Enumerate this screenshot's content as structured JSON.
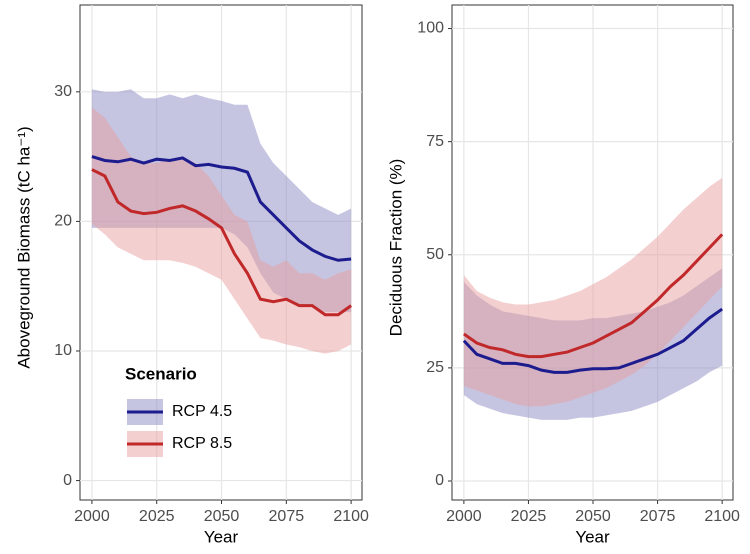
{
  "chart_data": [
    {
      "type": "line",
      "y_label": "Aboveground Biomass (tC ha⁻¹)",
      "x_label": "Year",
      "xlim": [
        1995.4,
        2104.2
      ],
      "xticks": [
        2000,
        2025,
        2050,
        2075,
        2100
      ],
      "ylim": [
        -1.5,
        36.7
      ],
      "yticks": [
        0,
        10,
        20,
        30
      ],
      "grid": true,
      "legend": {
        "title": "Scenario",
        "position": "bottom-left"
      },
      "x": [
        2000,
        2005,
        2010,
        2015,
        2020,
        2025,
        2030,
        2035,
        2040,
        2045,
        2050,
        2055,
        2060,
        2065,
        2070,
        2075,
        2080,
        2085,
        2090,
        2095,
        2100
      ],
      "series": [
        {
          "name": "RCP 4.5",
          "color": "#1c1c8e",
          "band_color": "#8c8cc6",
          "values": [
            25,
            24.7,
            24.6,
            24.8,
            24.5,
            24.8,
            24.7,
            24.9,
            24.3,
            24.4,
            24.2,
            24.1,
            23.8,
            21.5,
            20.5,
            19.5,
            18.5,
            17.8,
            17.3,
            17,
            17.1
          ],
          "lower": [
            19.5,
            19.5,
            19.5,
            19.5,
            19.5,
            19.5,
            19.5,
            19.5,
            19.5,
            19.5,
            19.5,
            19,
            18,
            16,
            14.5,
            14,
            13.5,
            13.5,
            13,
            13,
            13
          ],
          "upper": [
            30.2,
            30,
            30,
            30.2,
            29.5,
            29.5,
            29.8,
            29.5,
            29.8,
            29.5,
            29.3,
            29,
            29,
            26,
            24.5,
            23.5,
            22.5,
            21.5,
            21,
            20.5,
            21
          ]
        },
        {
          "name": "RCP 8.5",
          "color": "#c0282a",
          "band_color": "#e8a0a0",
          "values": [
            24,
            23.5,
            21.5,
            20.8,
            20.6,
            20.7,
            21,
            21.2,
            20.8,
            20.2,
            19.5,
            17.5,
            16,
            14,
            13.8,
            14,
            13.5,
            13.5,
            12.8,
            12.8,
            13.5
          ],
          "lower": [
            19.8,
            19,
            18,
            17.5,
            17,
            17,
            17,
            16.8,
            16.5,
            16,
            15.5,
            14,
            12.5,
            11,
            10.8,
            10.5,
            10.3,
            10,
            9.8,
            10,
            10.5
          ],
          "upper": [
            28.8,
            28,
            26.5,
            25,
            24.5,
            24.5,
            24.8,
            25,
            24.5,
            23.5,
            22,
            20.5,
            20,
            17,
            16.5,
            17,
            16,
            16,
            15.5,
            16,
            16.3
          ]
        }
      ]
    },
    {
      "type": "line",
      "y_label": "Deciduous Fraction (%)",
      "x_label": "Year",
      "xlim": [
        1995.4,
        2104.2
      ],
      "xticks": [
        2000,
        2025,
        2050,
        2075,
        2100
      ],
      "ylim": [
        -4.2,
        105.2
      ],
      "yticks": [
        0,
        25,
        50,
        75,
        100
      ],
      "grid": true,
      "x": [
        2000,
        2005,
        2010,
        2015,
        2020,
        2025,
        2030,
        2035,
        2040,
        2045,
        2050,
        2055,
        2060,
        2065,
        2070,
        2075,
        2080,
        2085,
        2090,
        2095,
        2100
      ],
      "series": [
        {
          "color": "#1c1c8e",
          "band_color": "#8c8cc6",
          "values": [
            31,
            28,
            27,
            26,
            26,
            25.5,
            24.5,
            24,
            24,
            24.5,
            24.8,
            24.8,
            25,
            26,
            27,
            28,
            29.5,
            31,
            33.5,
            36,
            38
          ],
          "lower": [
            19,
            17,
            16,
            15,
            14.5,
            14,
            13.5,
            13.5,
            13.5,
            14,
            14,
            14.5,
            15,
            15.5,
            16.5,
            17.5,
            19,
            20.5,
            22,
            24,
            25.5
          ],
          "upper": [
            44,
            41,
            39,
            37.5,
            37,
            36.5,
            36,
            35.5,
            35.5,
            35.5,
            36,
            36,
            36.5,
            37,
            37.5,
            38.5,
            39.5,
            41,
            43,
            45,
            47
          ]
        },
        {
          "color": "#c0282a",
          "band_color": "#e8a0a0",
          "values": [
            32.5,
            30.5,
            29.5,
            29,
            28,
            27.5,
            27.5,
            28,
            28.5,
            29.5,
            30.5,
            32,
            33.5,
            35,
            37.5,
            40,
            43,
            45.5,
            48.5,
            51.5,
            54.5
          ],
          "lower": [
            21,
            20,
            19,
            18,
            17,
            16.5,
            16.5,
            17,
            17.5,
            18.5,
            19.5,
            20.5,
            22,
            23.5,
            25.5,
            28,
            31,
            34,
            37,
            40,
            43
          ],
          "upper": [
            45.5,
            42,
            40.5,
            39.5,
            39,
            39,
            39.5,
            40,
            41,
            42,
            43.5,
            45,
            47,
            49,
            51.5,
            54,
            57,
            60,
            62.5,
            65,
            67
          ]
        }
      ]
    }
  ]
}
